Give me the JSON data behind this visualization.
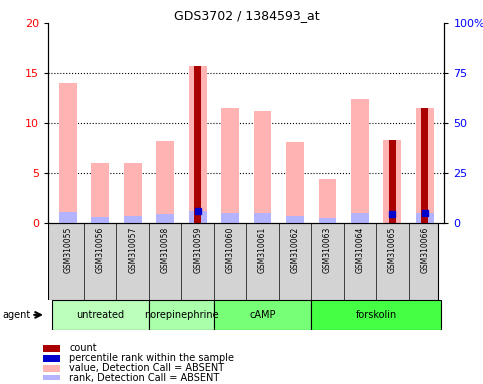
{
  "title": "GDS3702 / 1384593_at",
  "samples": [
    "GSM310055",
    "GSM310056",
    "GSM310057",
    "GSM310058",
    "GSM310059",
    "GSM310060",
    "GSM310061",
    "GSM310062",
    "GSM310063",
    "GSM310064",
    "GSM310065",
    "GSM310066"
  ],
  "value_absent": [
    14.0,
    6.0,
    6.0,
    8.2,
    15.7,
    11.5,
    11.2,
    8.1,
    4.4,
    12.4,
    8.3,
    11.5
  ],
  "rank_absent": [
    5.5,
    2.8,
    3.2,
    4.6,
    5.7,
    5.1,
    5.1,
    3.6,
    2.6,
    5.1,
    null,
    5.0
  ],
  "count": [
    null,
    null,
    null,
    null,
    15.7,
    null,
    null,
    null,
    null,
    null,
    8.3,
    11.5
  ],
  "percentile_rank": [
    null,
    null,
    null,
    null,
    5.7,
    null,
    null,
    null,
    null,
    null,
    4.6,
    5.0
  ],
  "groups": [
    {
      "label": "untreated",
      "start": 0,
      "end": 2,
      "color": "#bbffbb"
    },
    {
      "label": "norepinephrine",
      "start": 3,
      "end": 4,
      "color": "#aaffaa"
    },
    {
      "label": "cAMP",
      "start": 5,
      "end": 7,
      "color": "#77ff77"
    },
    {
      "label": "forskolin",
      "start": 8,
      "end": 11,
      "color": "#44ff44"
    }
  ],
  "ylim_left": [
    0,
    20
  ],
  "ylim_right": [
    0,
    100
  ],
  "yticks_left": [
    0,
    5,
    10,
    15,
    20
  ],
  "yticks_right": [
    0,
    25,
    50,
    75,
    100
  ],
  "yticklabels_right": [
    "0",
    "25",
    "50",
    "75",
    "100%"
  ],
  "color_value_absent": "#ffb3b3",
  "color_rank_absent": "#b3b3ff",
  "color_count": "#aa0000",
  "color_percentile": "#0000cc",
  "bar_width": 0.55,
  "count_bar_width": 0.22
}
